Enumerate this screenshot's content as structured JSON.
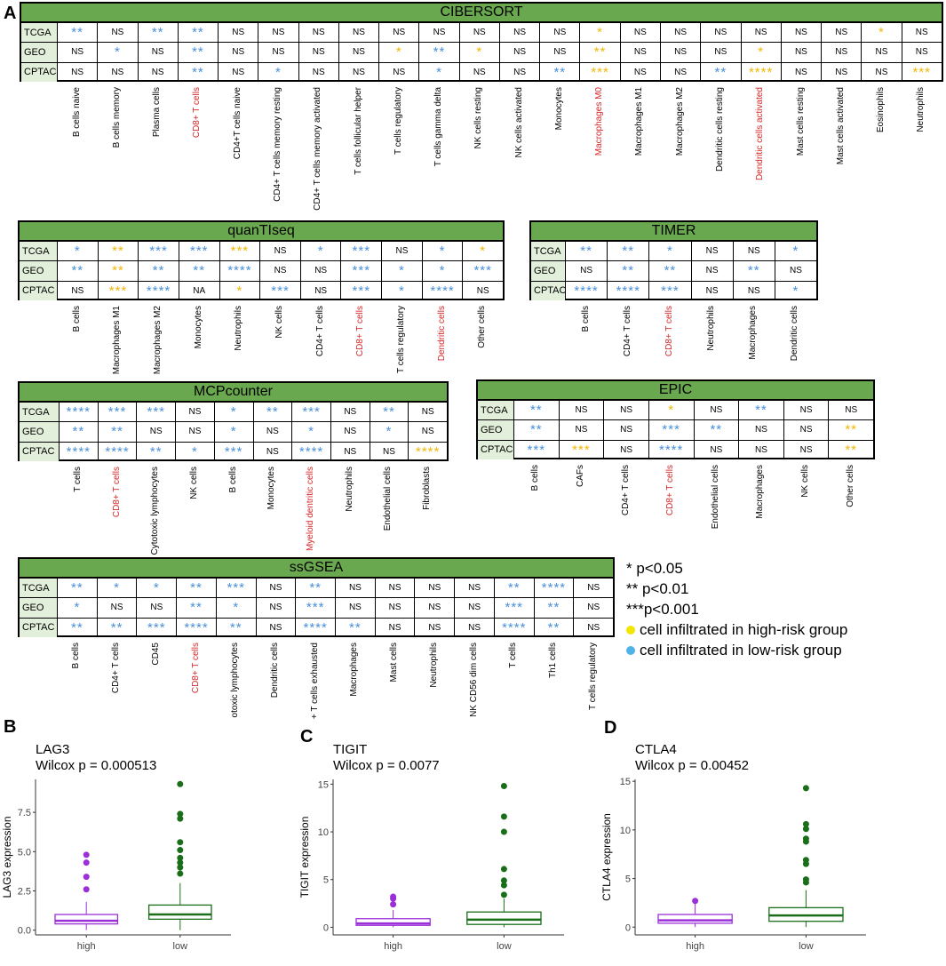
{
  "panels": {
    "a": "A",
    "b": "B",
    "c": "C",
    "d": "D"
  },
  "colors": {
    "low": "#4a90d9",
    "high": "#f2b705",
    "header": "#6aa84f",
    "rowbg": "#e2efda",
    "red": "#d62728",
    "purple": "#9b30d9",
    "green": "#1a6e1a"
  },
  "heatmaps": {
    "cibersort": {
      "title": "CIBERSORT",
      "rows": [
        "TCGA",
        "GEO",
        "CPTAC"
      ],
      "cols": [
        {
          "label": "B cells naive",
          "red": false
        },
        {
          "label": "B cells memory",
          "red": false
        },
        {
          "label": "Plasma cells",
          "red": false
        },
        {
          "label": "CD8+ T cells",
          "red": true
        },
        {
          "label": "CD4+T cells naive",
          "red": false
        },
        {
          "label": "CD4+ T cells memory resting",
          "red": false
        },
        {
          "label": "CD4+ T cells memory activated",
          "red": false
        },
        {
          "label": "T cells follicular helper",
          "red": false
        },
        {
          "label": "T cells regulatory",
          "red": false
        },
        {
          "label": "T cells gamma delta",
          "red": false
        },
        {
          "label": "NK cells resting",
          "red": false
        },
        {
          "label": "NK cells activated",
          "red": false
        },
        {
          "label": "Monocytes",
          "red": false
        },
        {
          "label": "Macrophages M0",
          "red": true
        },
        {
          "label": "Macrophages M1",
          "red": false
        },
        {
          "label": "Macrophages M2",
          "red": false
        },
        {
          "label": "Dendritic cells resting",
          "red": false
        },
        {
          "label": "Dendritic cells activated",
          "red": true
        },
        {
          "label": "Mast cells resting",
          "red": false
        },
        {
          "label": "Mast cells activated",
          "red": false
        },
        {
          "label": "Eosinophils",
          "red": false
        },
        {
          "label": "Neutrophils",
          "red": false
        }
      ],
      "cells": [
        [
          "L**",
          "NS",
          "L**",
          "L**",
          "NS",
          "NS",
          "NS",
          "NS",
          "NS",
          "NS",
          "NS",
          "NS",
          "NS",
          "H*",
          "NS",
          "NS",
          "NS",
          "NS",
          "NS",
          "NS",
          "H*",
          "NS"
        ],
        [
          "NS",
          "L*",
          "NS",
          "L**",
          "NS",
          "NS",
          "NS",
          "NS",
          "H*",
          "L**",
          "H*",
          "NS",
          "NS",
          "H**",
          "NS",
          "NS",
          "NS",
          "H*",
          "NS",
          "NS",
          "NS",
          "NS"
        ],
        [
          "NS",
          "NS",
          "NS",
          "L**",
          "NS",
          "L*",
          "NS",
          "NS",
          "NS",
          "L*",
          "NS",
          "NS",
          "L**",
          "H***",
          "NS",
          "NS",
          "L**",
          "H****",
          "NS",
          "NS",
          "NS",
          "H***"
        ]
      ]
    },
    "quantiseq": {
      "title": "quanTIseq",
      "rows": [
        "TCGA",
        "GEO",
        "CPTAC"
      ],
      "cols": [
        {
          "label": "B cells",
          "red": false
        },
        {
          "label": "Macrophages M1",
          "red": false
        },
        {
          "label": "Macrophages M2",
          "red": false
        },
        {
          "label": "Monocytes",
          "red": false
        },
        {
          "label": "Neutrophils",
          "red": false
        },
        {
          "label": "NK cells",
          "red": false
        },
        {
          "label": "CD4+ T cells",
          "red": false
        },
        {
          "label": "CD8+ T cells",
          "red": true
        },
        {
          "label": "T cells regulatory",
          "red": false
        },
        {
          "label": "Dendritic cells",
          "red": true
        },
        {
          "label": "Other cells",
          "red": false
        }
      ],
      "cells": [
        [
          "L*",
          "H**",
          "L***",
          "L***",
          "H***",
          "NS",
          "L*",
          "L***",
          "NS",
          "L*",
          "H*"
        ],
        [
          "L**",
          "H**",
          "L**",
          "L**",
          "L****",
          "NS",
          "NS",
          "L***",
          "L*",
          "L*",
          "L***"
        ],
        [
          "NS",
          "H***",
          "L****",
          "NA",
          "H*",
          "L***",
          "NS",
          "L***",
          "L*",
          "L****",
          "NS"
        ]
      ]
    },
    "timer": {
      "title": "TIMER",
      "rows": [
        "TCGA",
        "GEO",
        "CPTAC"
      ],
      "cols": [
        {
          "label": "B cells",
          "red": false
        },
        {
          "label": "CD4+ T cells",
          "red": false
        },
        {
          "label": "CD8+ T cells",
          "red": true
        },
        {
          "label": "Neutrophils",
          "red": false
        },
        {
          "label": "Macrophages",
          "red": false
        },
        {
          "label": "Dendritic cells",
          "red": false
        }
      ],
      "cells": [
        [
          "L**",
          "L**",
          "L*",
          "NS",
          "NS",
          "L*"
        ],
        [
          "NS",
          "L**",
          "L**",
          "NS",
          "L**",
          "NS"
        ],
        [
          "L****",
          "L****",
          "L***",
          "NS",
          "NS",
          "L*"
        ]
      ]
    },
    "mcpcounter": {
      "title": "MCPcounter",
      "rows": [
        "TCGA",
        "GEO",
        "CPTAC"
      ],
      "cols": [
        {
          "label": "T cells",
          "red": false
        },
        {
          "label": "CD8+ T cells",
          "red": true
        },
        {
          "label": "Cytotoxic lymphocytes",
          "red": false
        },
        {
          "label": "NK cells",
          "red": false
        },
        {
          "label": "B cells",
          "red": false
        },
        {
          "label": "Monocytes",
          "red": false
        },
        {
          "label": "Myeloid dentritic cells",
          "red": true
        },
        {
          "label": "Neutrophils",
          "red": false
        },
        {
          "label": "Endothelial cells",
          "red": false
        },
        {
          "label": "Fibroblasts",
          "red": false
        }
      ],
      "cells": [
        [
          "L****",
          "L***",
          "L***",
          "NS",
          "L*",
          "L**",
          "L***",
          "NS",
          "L**",
          "NS"
        ],
        [
          "L**",
          "L**",
          "NS",
          "NS",
          "L*",
          "NS",
          "L*",
          "NS",
          "L*",
          "NS"
        ],
        [
          "L****",
          "L****",
          "L**",
          "L*",
          "L***",
          "NS",
          "L****",
          "NS",
          "NS",
          "H****"
        ]
      ]
    },
    "epic": {
      "title": "EPIC",
      "rows": [
        "TCGA",
        "GEO",
        "CPTAC"
      ],
      "cols": [
        {
          "label": "B cells",
          "red": false
        },
        {
          "label": "CAFs",
          "red": false
        },
        {
          "label": "CD4+ T cells",
          "red": false
        },
        {
          "label": "CD8+ T cells",
          "red": true
        },
        {
          "label": "Endothelial cells",
          "red": false
        },
        {
          "label": "Macrophages",
          "red": false
        },
        {
          "label": "NK cells",
          "red": false
        },
        {
          "label": "Other cells",
          "red": false
        }
      ],
      "cells": [
        [
          "L**",
          "NS",
          "NS",
          "H*",
          "NS",
          "L**",
          "NS",
          "NS"
        ],
        [
          "L**",
          "NS",
          "NS",
          "L***",
          "L**",
          "NS",
          "NS",
          "H**"
        ],
        [
          "L***",
          "H***",
          "NS",
          "L****",
          "NS",
          "NS",
          "NS",
          "H**"
        ]
      ]
    },
    "ssgsea": {
      "title": "ssGSEA",
      "rows": [
        "TCGA",
        "GEO",
        "CPTAC"
      ],
      "cols": [
        {
          "label": "B cells",
          "red": false
        },
        {
          "label": "CD4+ T cells",
          "red": false
        },
        {
          "label": "CD45",
          "red": false
        },
        {
          "label": "CD8+ T cells",
          "red": true
        },
        {
          "label": "otoxic lymphocytes",
          "red": false
        },
        {
          "label": "Dendritic cells",
          "red": false
        },
        {
          "label": "+ T cells exhausted",
          "red": false
        },
        {
          "label": "Macrophages",
          "red": false
        },
        {
          "label": "Mast cells",
          "red": false
        },
        {
          "label": "Neutrophils",
          "red": false
        },
        {
          "label": "NK CD56 dim cells",
          "red": false
        },
        {
          "label": "T cells",
          "red": false
        },
        {
          "label": "Th1 cells",
          "red": false
        },
        {
          "label": "T cells regulatory",
          "red": false
        }
      ],
      "cells": [
        [
          "L**",
          "L*",
          "L*",
          "L**",
          "L***",
          "NS",
          "L**",
          "NS",
          "NS",
          "NS",
          "NS",
          "L**",
          "L****",
          "NS"
        ],
        [
          "L*",
          "NS",
          "NS",
          "L**",
          "L*",
          "NS",
          "L***",
          "NS",
          "NS",
          "NS",
          "NS",
          "L***",
          "L**",
          "NS"
        ],
        [
          "L**",
          "L**",
          "L***",
          "L****",
          "L**",
          "NS",
          "L****",
          "L**",
          "NS",
          "NS",
          "NS",
          "L****",
          "L**",
          "NS"
        ]
      ]
    }
  },
  "legend": {
    "p05": "* p<0.05",
    "p01": "** p<0.01",
    "p001": "***p<0.001",
    "high": "cell infiltrated in high-risk group",
    "low": "cell infiltrated in low-risk group"
  },
  "boxplots": [
    {
      "gene": "LAG3",
      "stat": "Wilcox p = 0.000513",
      "ylabel": "LAG3 expression",
      "groups": [
        "high",
        "low"
      ],
      "ylim": [
        -0.3,
        9.6
      ],
      "ticks": [
        0.0,
        2.5,
        5.0,
        7.5
      ],
      "tickLabels": [
        "0.0",
        "2.5",
        "5.0",
        "7.5"
      ],
      "high": {
        "q1": 0.4,
        "med": 0.6,
        "q3": 1.0,
        "wlo": 0.0,
        "whi": 1.8,
        "out": [
          2.6,
          3.4,
          4.3,
          4.8
        ]
      },
      "low": {
        "q1": 0.7,
        "med": 1.0,
        "q3": 1.6,
        "wlo": 0.0,
        "whi": 3.0,
        "out": [
          3.6,
          4.0,
          4.3,
          4.6,
          5.1,
          5.6,
          7.1,
          7.4,
          9.3
        ]
      }
    },
    {
      "gene": "TIGIT",
      "stat": "Wilcox p = 0.0077",
      "ylabel": "TIGIT expression",
      "groups": [
        "high",
        "low"
      ],
      "ylim": [
        -0.8,
        15.5
      ],
      "ticks": [
        0,
        5,
        10,
        15
      ],
      "tickLabels": [
        "0",
        "5",
        "10",
        "15"
      ],
      "high": {
        "q1": 0.2,
        "med": 0.4,
        "q3": 0.9,
        "wlo": 0.0,
        "whi": 1.8,
        "out": [
          2.4,
          3.0,
          3.2
        ]
      },
      "low": {
        "q1": 0.3,
        "med": 0.8,
        "q3": 1.6,
        "wlo": 0.0,
        "whi": 3.0,
        "out": [
          3.4,
          4.4,
          4.9,
          6.1,
          10.0,
          11.6,
          14.8
        ]
      }
    },
    {
      "gene": "CTLA4",
      "stat": "Wilcox p = 0.00452",
      "ylabel": "CTLA4 expression",
      "groups": [
        "high",
        "low"
      ],
      "ylim": [
        -0.8,
        15.2
      ],
      "ticks": [
        0,
        5,
        10,
        15
      ],
      "tickLabels": [
        "0",
        "5",
        "10",
        "15"
      ],
      "high": {
        "q1": 0.4,
        "med": 0.7,
        "q3": 1.3,
        "wlo": 0.0,
        "whi": 2.4,
        "out": [
          2.7
        ]
      },
      "low": {
        "q1": 0.6,
        "med": 1.2,
        "q3": 2.0,
        "wlo": 0.0,
        "whi": 3.8,
        "out": [
          4.6,
          4.9,
          6.5,
          6.9,
          8.8,
          9.1,
          10.1,
          10.6,
          14.3
        ]
      }
    }
  ]
}
